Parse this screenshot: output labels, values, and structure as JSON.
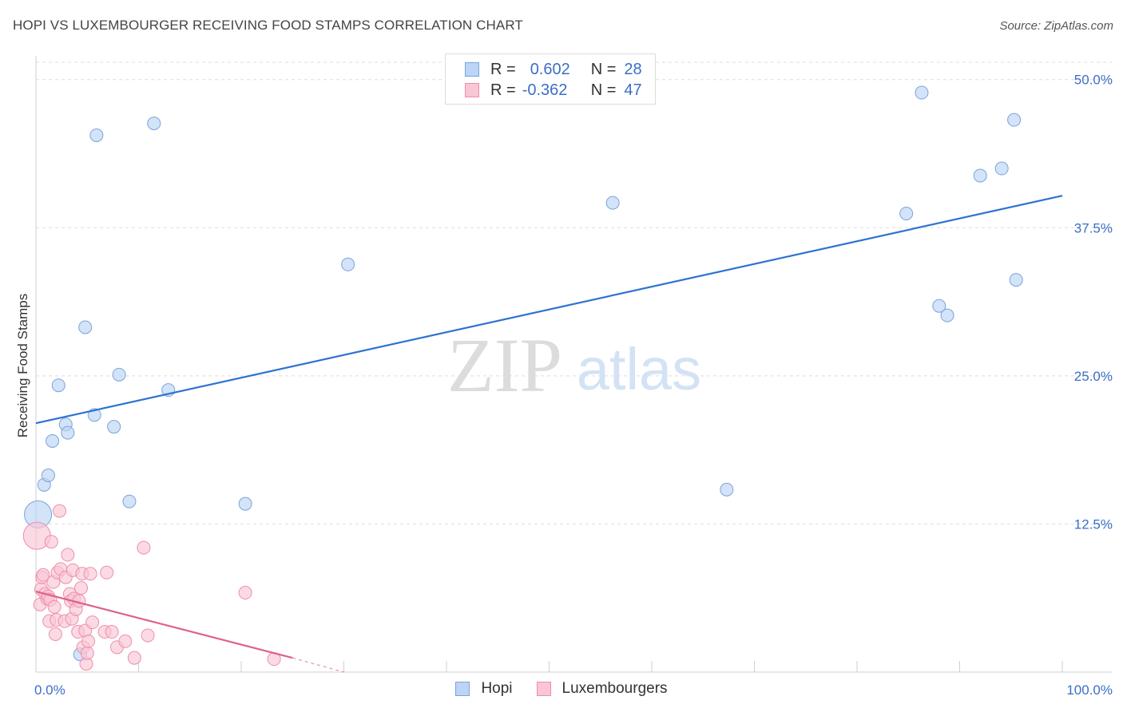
{
  "title": "HOPI VS LUXEMBOURGER RECEIVING FOOD STAMPS CORRELATION CHART",
  "source": "Source: ZipAtlas.com",
  "watermark": {
    "zip": "ZIP",
    "atlas": "atlas"
  },
  "legend": {
    "r_label": "R =",
    "n_label": "N =",
    "rows": [
      {
        "r": "0.602",
        "n": "28"
      },
      {
        "r": "-0.362",
        "n": "47"
      }
    ]
  },
  "bottom_legend": [
    "Hopi",
    "Luxembourgers"
  ],
  "colors": {
    "hopi_fill": "#bcd4f5",
    "hopi_stroke": "#7ba3dd",
    "hopi_line": "#2e72d2",
    "lux_fill": "#f9c6d4",
    "lux_stroke": "#ee8eab",
    "lux_line": "#e0608a",
    "axis_label": "#3b6fc4",
    "grid": "#dddddd"
  },
  "chart_data": {
    "type": "scatter",
    "title": "HOPI VS LUXEMBOURGER RECEIVING FOOD STAMPS CORRELATION CHART",
    "xlabel": "",
    "ylabel": "Receiving Food Stamps",
    "xlim": [
      0,
      100
    ],
    "ylim": [
      0,
      52
    ],
    "x_tick_labels": [
      "0.0%",
      "100.0%"
    ],
    "y_ticks": [
      12.5,
      25.0,
      37.5,
      50.0
    ],
    "y_tick_labels": [
      "12.5%",
      "25.0%",
      "37.5%",
      "50.0%"
    ],
    "grid": true,
    "legend_position": "top-center",
    "series": [
      {
        "name": "Hopi",
        "r": 0.602,
        "n": 28,
        "trend": {
          "x": [
            0,
            100
          ],
          "y": [
            21.0,
            40.2
          ]
        },
        "points": [
          {
            "x": 0.2,
            "y": 13.3,
            "size": "large"
          },
          {
            "x": 0.8,
            "y": 15.8
          },
          {
            "x": 1.2,
            "y": 16.6
          },
          {
            "x": 1.6,
            "y": 19.5
          },
          {
            "x": 2.2,
            "y": 24.2
          },
          {
            "x": 2.9,
            "y": 20.9
          },
          {
            "x": 3.1,
            "y": 20.2
          },
          {
            "x": 4.3,
            "y": 1.5
          },
          {
            "x": 4.8,
            "y": 29.1
          },
          {
            "x": 5.7,
            "y": 21.7
          },
          {
            "x": 5.9,
            "y": 45.3
          },
          {
            "x": 7.6,
            "y": 20.7
          },
          {
            "x": 8.1,
            "y": 25.1
          },
          {
            "x": 9.1,
            "y": 14.4
          },
          {
            "x": 11.5,
            "y": 46.3
          },
          {
            "x": 12.9,
            "y": 23.8
          },
          {
            "x": 20.4,
            "y": 14.2
          },
          {
            "x": 30.4,
            "y": 34.4
          },
          {
            "x": 56.2,
            "y": 39.6
          },
          {
            "x": 67.3,
            "y": 15.4
          },
          {
            "x": 84.8,
            "y": 38.7
          },
          {
            "x": 86.3,
            "y": 48.9
          },
          {
            "x": 88.0,
            "y": 30.9
          },
          {
            "x": 88.8,
            "y": 30.1
          },
          {
            "x": 92.0,
            "y": 41.9
          },
          {
            "x": 94.1,
            "y": 42.5
          },
          {
            "x": 95.3,
            "y": 46.6
          },
          {
            "x": 95.5,
            "y": 33.1
          }
        ]
      },
      {
        "name": "Luxembourgers",
        "r": -0.362,
        "n": 47,
        "trend": {
          "x": [
            0,
            25
          ],
          "y": [
            6.8,
            1.2
          ]
        },
        "trend_dashed": {
          "x": [
            25,
            30
          ],
          "y": [
            1.2,
            0.0
          ]
        },
        "points": [
          {
            "x": 0.1,
            "y": 11.5,
            "size": "large"
          },
          {
            "x": 0.4,
            "y": 5.7
          },
          {
            "x": 0.5,
            "y": 7.0
          },
          {
            "x": 0.6,
            "y": 8.0
          },
          {
            "x": 0.7,
            "y": 8.2
          },
          {
            "x": 0.9,
            "y": 6.6
          },
          {
            "x": 1.1,
            "y": 6.2
          },
          {
            "x": 1.2,
            "y": 6.4
          },
          {
            "x": 1.3,
            "y": 4.3
          },
          {
            "x": 1.4,
            "y": 6.1
          },
          {
            "x": 1.5,
            "y": 11.0
          },
          {
            "x": 1.7,
            "y": 7.6
          },
          {
            "x": 1.8,
            "y": 5.5
          },
          {
            "x": 1.9,
            "y": 3.2
          },
          {
            "x": 2.0,
            "y": 4.4
          },
          {
            "x": 2.1,
            "y": 8.4
          },
          {
            "x": 2.3,
            "y": 13.6
          },
          {
            "x": 2.4,
            "y": 8.7
          },
          {
            "x": 2.8,
            "y": 4.3
          },
          {
            "x": 2.9,
            "y": 8.0
          },
          {
            "x": 3.1,
            "y": 9.9
          },
          {
            "x": 3.3,
            "y": 6.6
          },
          {
            "x": 3.4,
            "y": 6.0
          },
          {
            "x": 3.5,
            "y": 4.5
          },
          {
            "x": 3.6,
            "y": 8.6
          },
          {
            "x": 3.7,
            "y": 6.2
          },
          {
            "x": 3.9,
            "y": 5.3
          },
          {
            "x": 4.1,
            "y": 3.4
          },
          {
            "x": 4.2,
            "y": 6.0
          },
          {
            "x": 4.4,
            "y": 7.1
          },
          {
            "x": 4.5,
            "y": 8.3
          },
          {
            "x": 4.6,
            "y": 2.1
          },
          {
            "x": 4.8,
            "y": 3.5
          },
          {
            "x": 4.9,
            "y": 0.7
          },
          {
            "x": 5.0,
            "y": 1.6
          },
          {
            "x": 5.1,
            "y": 2.6
          },
          {
            "x": 5.3,
            "y": 8.3
          },
          {
            "x": 5.5,
            "y": 4.2
          },
          {
            "x": 6.7,
            "y": 3.4
          },
          {
            "x": 6.9,
            "y": 8.4
          },
          {
            "x": 7.4,
            "y": 3.4
          },
          {
            "x": 7.9,
            "y": 2.1
          },
          {
            "x": 8.7,
            "y": 2.6
          },
          {
            "x": 9.6,
            "y": 1.2
          },
          {
            "x": 10.5,
            "y": 10.5
          },
          {
            "x": 10.9,
            "y": 3.1
          },
          {
            "x": 20.4,
            "y": 6.7
          },
          {
            "x": 23.2,
            "y": 1.1
          }
        ]
      }
    ]
  }
}
